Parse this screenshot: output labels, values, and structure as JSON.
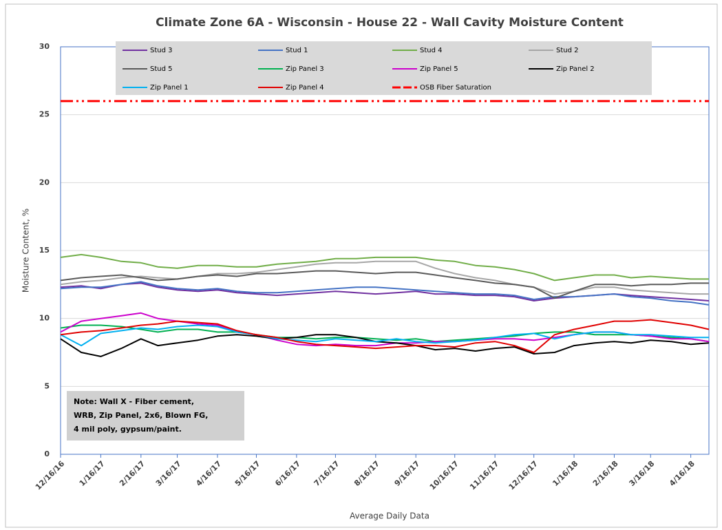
{
  "chart_data": {
    "type": "line",
    "title": "Climate Zone 6A - Wisconsin - House 22 - Wall Cavity Moisture Content",
    "x_label": "Average Daily Data",
    "y_label": "Moisture Content, %",
    "x": [
      "12/16/16",
      "1/1/17",
      "1/16/17",
      "2/1/17",
      "2/16/17",
      "3/1/17",
      "3/16/17",
      "4/1/17",
      "4/16/17",
      "5/1/17",
      "5/16/17",
      "6/1/17",
      "6/16/17",
      "7/1/17",
      "7/16/17",
      "8/1/17",
      "8/16/17",
      "9/1/17",
      "9/16/17",
      "10/1/17",
      "10/16/17",
      "11/1/17",
      "11/16/17",
      "12/1/17",
      "12/16/17",
      "1/1/18",
      "1/16/18",
      "2/1/18",
      "2/16/18",
      "3/1/18",
      "3/16/18",
      "4/1/18",
      "4/16/18",
      "4/30/18"
    ],
    "xlim": [
      "12/16/16",
      "4/30/18"
    ],
    "xticks": [
      "12/16/16",
      "1/16/17",
      "2/16/17",
      "3/16/17",
      "4/16/17",
      "5/16/17",
      "6/16/17",
      "7/16/17",
      "8/16/17",
      "9/16/17",
      "10/16/17",
      "11/16/17",
      "12/16/17",
      "1/16/18",
      "2/16/18",
      "3/16/18",
      "4/16/18"
    ],
    "ylim": [
      0,
      30
    ],
    "yticks": [
      0,
      5,
      10,
      15,
      20,
      25,
      30
    ],
    "grid": true,
    "series": [
      {
        "name": "Stud 3",
        "color": "#7030a0",
        "values": [
          12.3,
          12.4,
          12.2,
          12.5,
          12.6,
          12.3,
          12.1,
          12.0,
          12.1,
          11.9,
          11.8,
          11.7,
          11.8,
          11.9,
          12.0,
          11.9,
          11.8,
          11.9,
          12.0,
          11.8,
          11.8,
          11.7,
          11.7,
          11.6,
          11.3,
          11.5,
          11.6,
          11.7,
          11.8,
          11.7,
          11.6,
          11.5,
          11.4,
          11.3
        ]
      },
      {
        "name": "Stud 1",
        "color": "#4472c4",
        "values": [
          12.2,
          12.3,
          12.3,
          12.5,
          12.7,
          12.4,
          12.2,
          12.1,
          12.2,
          12.0,
          11.9,
          11.9,
          12.0,
          12.1,
          12.2,
          12.3,
          12.3,
          12.2,
          12.1,
          12.0,
          11.9,
          11.8,
          11.8,
          11.7,
          11.4,
          11.6,
          11.6,
          11.7,
          11.8,
          11.6,
          11.5,
          11.3,
          11.2,
          11.0
        ]
      },
      {
        "name": "Stud 4",
        "color": "#70ad47",
        "values": [
          14.5,
          14.7,
          14.5,
          14.2,
          14.1,
          13.8,
          13.7,
          13.9,
          13.9,
          13.8,
          13.8,
          14.0,
          14.1,
          14.2,
          14.4,
          14.4,
          14.5,
          14.5,
          14.5,
          14.3,
          14.2,
          13.9,
          13.8,
          13.6,
          13.3,
          12.8,
          13.0,
          13.2,
          13.2,
          13.0,
          13.1,
          13.0,
          12.9,
          12.9
        ]
      },
      {
        "name": "Stud 2",
        "color": "#a6a6a6",
        "values": [
          12.5,
          12.7,
          12.8,
          13.0,
          13.1,
          13.0,
          12.9,
          13.1,
          13.3,
          13.3,
          13.4,
          13.6,
          13.8,
          14.0,
          14.1,
          14.1,
          14.2,
          14.2,
          14.2,
          13.7,
          13.3,
          13.0,
          12.8,
          12.5,
          12.3,
          11.8,
          12.0,
          12.3,
          12.3,
          12.1,
          12.0,
          11.9,
          11.8,
          11.8
        ]
      },
      {
        "name": "Stud 5",
        "color": "#595959",
        "values": [
          12.8,
          13.0,
          13.1,
          13.2,
          13.0,
          12.8,
          12.9,
          13.1,
          13.2,
          13.1,
          13.3,
          13.3,
          13.4,
          13.5,
          13.5,
          13.4,
          13.3,
          13.4,
          13.4,
          13.2,
          13.0,
          12.8,
          12.6,
          12.5,
          12.3,
          11.5,
          12.0,
          12.5,
          12.5,
          12.4,
          12.5,
          12.5,
          12.6,
          12.6
        ]
      },
      {
        "name": "Zip Panel 3",
        "color": "#00b050",
        "values": [
          9.3,
          9.5,
          9.5,
          9.4,
          9.2,
          9.0,
          9.2,
          9.2,
          9.0,
          9.0,
          8.8,
          8.6,
          8.6,
          8.5,
          8.6,
          8.6,
          8.5,
          8.4,
          8.5,
          8.3,
          8.4,
          8.5,
          8.6,
          8.7,
          8.9,
          9.0,
          9.0,
          8.8,
          8.8,
          8.8,
          8.7,
          8.6,
          8.5,
          8.3
        ]
      },
      {
        "name": "Zip Panel 5",
        "color": "#cc00cc",
        "values": [
          9.0,
          9.8,
          10.0,
          10.2,
          10.4,
          10.0,
          9.8,
          9.6,
          9.5,
          9.0,
          8.8,
          8.4,
          8.1,
          8.0,
          8.1,
          8.0,
          8.0,
          8.2,
          8.2,
          8.3,
          8.3,
          8.4,
          8.5,
          8.5,
          8.4,
          8.6,
          8.8,
          9.0,
          9.0,
          8.8,
          8.7,
          8.5,
          8.5,
          8.3
        ]
      },
      {
        "name": "Zip Panel 2",
        "color": "#000000",
        "values": [
          8.5,
          7.5,
          7.2,
          7.8,
          8.5,
          8.0,
          8.2,
          8.4,
          8.7,
          8.8,
          8.7,
          8.5,
          8.6,
          8.8,
          8.8,
          8.6,
          8.3,
          8.2,
          8.0,
          7.7,
          7.8,
          7.6,
          7.8,
          7.9,
          7.4,
          7.5,
          8.0,
          8.2,
          8.3,
          8.2,
          8.4,
          8.3,
          8.1,
          8.2
        ]
      },
      {
        "name": "Zip Panel 1",
        "color": "#00b0f0",
        "values": [
          8.8,
          8.0,
          8.9,
          9.1,
          9.3,
          9.2,
          9.4,
          9.5,
          9.4,
          9.0,
          8.8,
          8.5,
          8.4,
          8.3,
          8.5,
          8.4,
          8.3,
          8.5,
          8.3,
          8.2,
          8.3,
          8.4,
          8.6,
          8.8,
          8.9,
          8.5,
          8.8,
          9.0,
          9.0,
          8.8,
          8.8,
          8.7,
          8.6,
          8.6
        ]
      },
      {
        "name": "Zip Panel 4",
        "color": "#e00000",
        "values": [
          8.8,
          9.0,
          9.1,
          9.3,
          9.5,
          9.6,
          9.8,
          9.7,
          9.6,
          9.1,
          8.8,
          8.6,
          8.3,
          8.1,
          8.0,
          7.9,
          7.8,
          7.9,
          8.0,
          8.0,
          7.9,
          8.2,
          8.3,
          8.0,
          7.5,
          8.8,
          9.2,
          9.5,
          9.8,
          9.8,
          9.9,
          9.7,
          9.5,
          9.2
        ]
      }
    ],
    "reference_line": {
      "name": "OSB Fiber Saturation",
      "value": 26,
      "color": "#ff0000"
    },
    "annotation": [
      "Note: Wall X - Fiber cement,",
      "WRB, Zip Panel, 2x6, Blown FG,",
      "4 mil poly, gypsum/paint."
    ]
  }
}
